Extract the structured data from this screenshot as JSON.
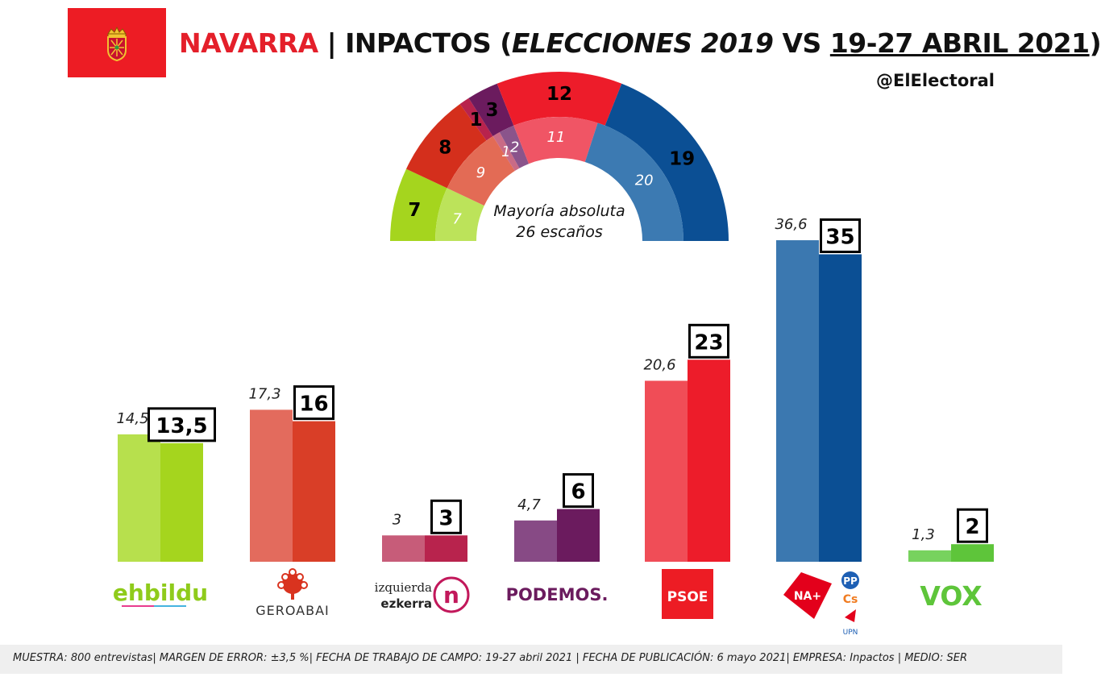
{
  "header": {
    "region": "NAVARRA",
    "separator": " | ",
    "pollster": "INPACTOS (",
    "election": "ELECCIONES 2019",
    "vs": " VS ",
    "dates": "19-27 ABRIL 2021",
    "close": ")",
    "handle": "@ElElectoral"
  },
  "footer": {
    "text": "MUESTRA: 800 entrevistas| MARGEN DE ERROR: ±3,5 %| FECHA DE TRABAJO DE CAMPO: 19-27 abril 2021 | FECHA DE PUBLICACIÓN: 6 mayo 2021| EMPRESA: Inpactos | MEDIO: SER"
  },
  "chart_data": [
    {
      "type": "bar",
      "categories": [
        "EH Bildu",
        "Geroa Bai",
        "Izquierda-Ezkerra",
        "Podemos",
        "PSOE",
        "NA+",
        "VOX"
      ],
      "series": [
        {
          "values": [
            14.5,
            17.3,
            3,
            4.7,
            20.6,
            36.6,
            1.3
          ]
        },
        {
          "values": [
            13.5,
            16,
            3,
            6,
            23,
            35,
            2
          ]
        }
      ],
      "value_labels": [
        [
          "14,5",
          "17,3",
          "3",
          "4,7",
          "20,6",
          "36,6",
          "1,3"
        ],
        [
          "13,5",
          "16",
          "3",
          "6",
          "23",
          "35",
          "2"
        ]
      ],
      "colors": [
        [
          "#b7e04d",
          "#e36b5d",
          "#c75c79",
          "#874a85",
          "#f04d57",
          "#3b78b0",
          "#77d25e"
        ],
        [
          "#a5d51e",
          "#d93e27",
          "#b8234d",
          "#6b1b5e",
          "#ed1c2a",
          "#0b4f94",
          "#5ec53a"
        ]
      ],
      "logos": [
        {
          "name": "ehbildu-logo",
          "text": "ehbildu"
        },
        {
          "name": "geroabai-logo",
          "text": "GEROABAI"
        },
        {
          "name": "izquierda-ezkerra-logo",
          "lines": [
            "izquierda",
            "ezkerra"
          ],
          "mark": "n"
        },
        {
          "name": "podemos-logo",
          "text": "PODEMOS."
        },
        {
          "name": "psoe-logo",
          "text": "PSOE"
        },
        {
          "name": "navarra-suma-logo",
          "text": "NA+",
          "sub": [
            "PP",
            "Cs",
            "UPN"
          ]
        },
        {
          "name": "vox-logo",
          "text": "VOX"
        }
      ],
      "ylim": [
        0,
        40
      ]
    },
    {
      "type": "pie",
      "subtype": "parliament-hemicycle",
      "total_seats": 50,
      "rings": [
        {
          "name": "outer",
          "slices": [
            {
              "party": "EH Bildu",
              "value": 7,
              "label": "7",
              "color": "#a5d51e"
            },
            {
              "party": "Geroa Bai",
              "value": 8,
              "label": "8",
              "color": "#d42f1c"
            },
            {
              "party": "Izquierda-Ezkerra",
              "value": 1,
              "label": "1",
              "color": "#b8234d"
            },
            {
              "party": "Podemos",
              "value": 3,
              "label": "3",
              "color": "#6b1b5e"
            },
            {
              "party": "PSOE",
              "value": 12,
              "label": "12",
              "color": "#ed1c2a"
            },
            {
              "party": "NA+",
              "value": 19,
              "label": "19",
              "color": "#0b4f94"
            }
          ]
        },
        {
          "name": "inner",
          "slices": [
            {
              "party": "EH Bildu",
              "value": 7,
              "label": "7",
              "color": "#bce35a"
            },
            {
              "party": "Geroa Bai",
              "value": 9,
              "label": "9",
              "color": "#e36b55"
            },
            {
              "party": "Izquierda-Ezkerra",
              "value": 1,
              "label": "1",
              "color": "#c96b86"
            },
            {
              "party": "Podemos",
              "value": 2,
              "label": "2",
              "color": "#8a548b"
            },
            {
              "party": "PSOE",
              "value": 11,
              "label": "11",
              "color": "#f05565"
            },
            {
              "party": "NA+",
              "value": 20,
              "label": "20",
              "color": "#3c7ab2"
            }
          ]
        }
      ],
      "center_text": [
        "Mayoría absoluta",
        "26 escaños"
      ]
    }
  ],
  "colors": {
    "title_accent": "#e41f2a",
    "flag_red": "#ed1c24",
    "footer_bg": "#efefef"
  }
}
